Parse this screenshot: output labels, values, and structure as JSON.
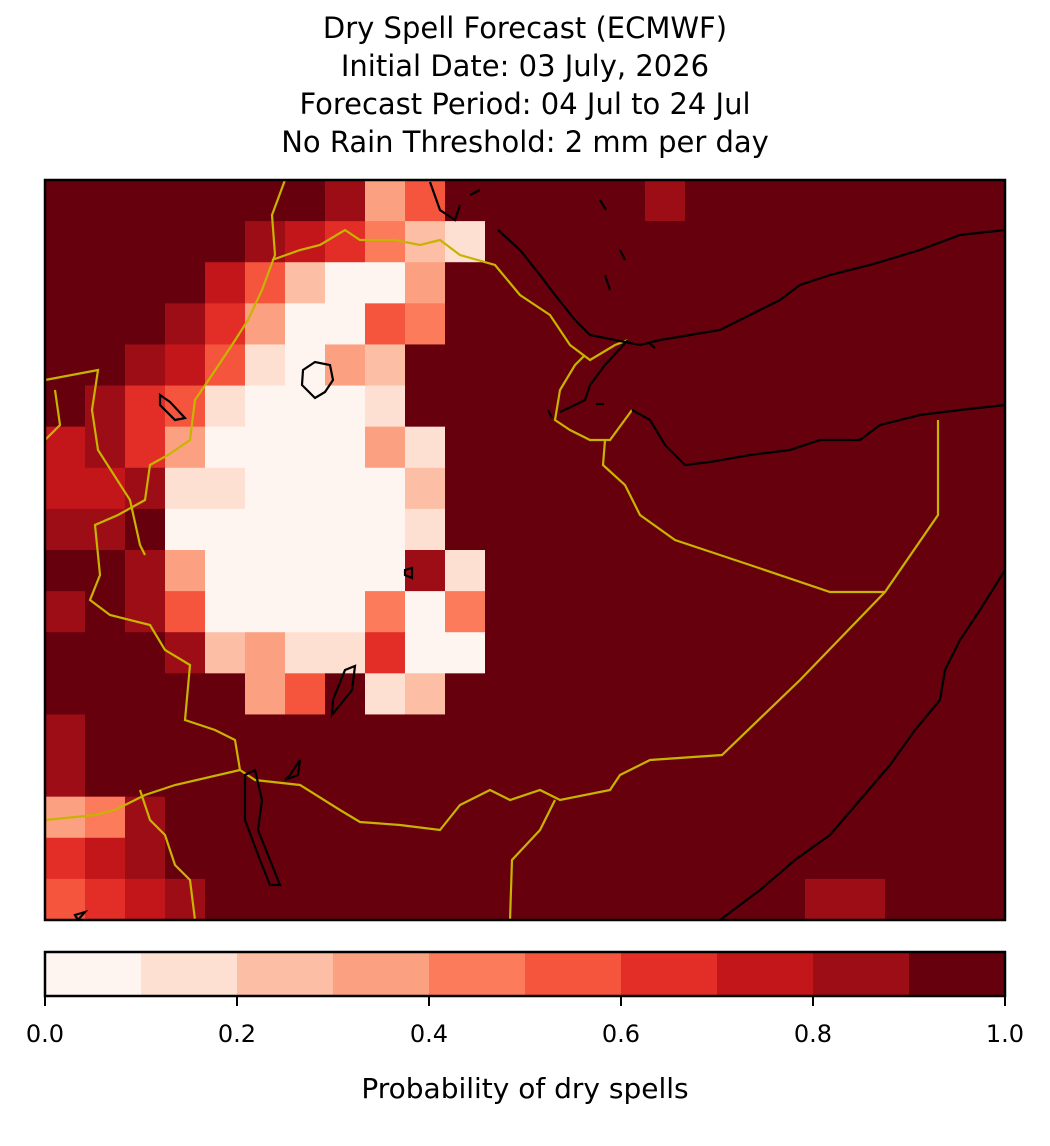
{
  "chart_data": {
    "type": "heatmap",
    "title": [
      "Dry Spell Forecast (ECMWF)",
      "Initial Date: 03 July, 2026",
      "Forecast Period: 04 Jul to 24 Jul",
      "No Rain Threshold: 2 mm per day"
    ],
    "values": [
      [
        0.95,
        0.95,
        0.95,
        0.95,
        0.95,
        0.95,
        0.95,
        0.85,
        0.35,
        0.55,
        0.95,
        0.95,
        0.95,
        0.95,
        0.95,
        0.85,
        0.95,
        0.95,
        0.95,
        0.95,
        0.95,
        0.95,
        0.95,
        0.95
      ],
      [
        0.95,
        0.95,
        0.95,
        0.95,
        0.95,
        0.85,
        0.75,
        0.65,
        0.45,
        0.2,
        0.15,
        0.95,
        0.95,
        0.95,
        0.95,
        0.95,
        0.95,
        0.95,
        0.95,
        0.95,
        0.95,
        0.95,
        0.95,
        0.95
      ],
      [
        0.95,
        0.95,
        0.95,
        0.95,
        0.75,
        0.55,
        0.2,
        0.05,
        0.05,
        0.3,
        0.95,
        0.95,
        0.95,
        0.95,
        0.95,
        0.95,
        0.95,
        0.95,
        0.95,
        0.95,
        0.95,
        0.95,
        0.95,
        0.95
      ],
      [
        0.95,
        0.95,
        0.95,
        0.85,
        0.65,
        0.35,
        0.05,
        0.05,
        0.5,
        0.4,
        0.95,
        0.95,
        0.95,
        0.95,
        0.95,
        0.95,
        0.95,
        0.95,
        0.95,
        0.95,
        0.95,
        0.95,
        0.95,
        0.95
      ],
      [
        0.95,
        0.95,
        0.85,
        0.75,
        0.55,
        0.15,
        0.05,
        0.3,
        0.2,
        0.9,
        0.95,
        0.95,
        0.95,
        0.95,
        0.95,
        0.95,
        0.95,
        0.95,
        0.95,
        0.95,
        0.95,
        0.95,
        0.95,
        0.95
      ],
      [
        0.9,
        0.8,
        0.65,
        0.55,
        0.15,
        0.05,
        0.05,
        0.05,
        0.15,
        0.95,
        0.95,
        0.95,
        0.95,
        0.95,
        0.95,
        0.95,
        0.95,
        0.95,
        0.95,
        0.95,
        0.95,
        0.95,
        0.95,
        0.95
      ],
      [
        0.75,
        0.8,
        0.65,
        0.3,
        0.05,
        0.05,
        0.05,
        0.05,
        0.3,
        0.1,
        0.95,
        0.95,
        0.95,
        0.95,
        0.95,
        0.95,
        0.95,
        0.95,
        0.95,
        0.95,
        0.95,
        0.95,
        0.95,
        0.95
      ],
      [
        0.75,
        0.7,
        0.85,
        0.1,
        0.1,
        0.05,
        0.05,
        0.05,
        0.05,
        0.2,
        0.95,
        0.95,
        0.95,
        0.95,
        0.95,
        0.95,
        0.95,
        0.95,
        0.95,
        0.95,
        0.95,
        0.95,
        0.95,
        0.95
      ],
      [
        0.85,
        0.85,
        0.9,
        0.05,
        0.05,
        0.05,
        0.05,
        0.05,
        0.05,
        0.1,
        0.95,
        0.95,
        0.95,
        0.95,
        0.95,
        0.95,
        0.95,
        0.95,
        0.95,
        0.95,
        0.95,
        0.95,
        0.95,
        0.95
      ],
      [
        0.9,
        0.95,
        0.8,
        0.35,
        0.05,
        0.05,
        0.05,
        0.05,
        0.05,
        0.85,
        0.1,
        0.95,
        0.95,
        0.95,
        0.95,
        0.95,
        0.95,
        0.95,
        0.95,
        0.95,
        0.95,
        0.95,
        0.95,
        0.95
      ],
      [
        0.85,
        0.9,
        0.85,
        0.55,
        0.05,
        0.05,
        0.05,
        0.05,
        0.4,
        0.05,
        0.45,
        0.95,
        0.95,
        0.95,
        0.95,
        0.95,
        0.95,
        0.95,
        0.95,
        0.95,
        0.95,
        0.95,
        0.95,
        0.95
      ],
      [
        0.9,
        0.95,
        0.95,
        0.85,
        0.2,
        0.35,
        0.15,
        0.15,
        0.6,
        0.05,
        0.05,
        0.95,
        0.95,
        0.95,
        0.95,
        0.95,
        0.95,
        0.95,
        0.95,
        0.95,
        0.95,
        0.95,
        0.95,
        0.95
      ],
      [
        0.9,
        0.95,
        0.95,
        0.95,
        0.95,
        0.3,
        0.55,
        0.9,
        0.15,
        0.25,
        0.95,
        0.95,
        0.95,
        0.95,
        0.95,
        0.95,
        0.95,
        0.95,
        0.95,
        0.95,
        0.95,
        0.95,
        0.95,
        0.95
      ],
      [
        0.85,
        0.95,
        0.95,
        0.95,
        0.95,
        0.95,
        0.95,
        0.95,
        0.95,
        0.95,
        0.95,
        0.95,
        0.95,
        0.95,
        0.95,
        0.95,
        0.95,
        0.95,
        0.95,
        0.95,
        0.95,
        0.95,
        0.95,
        0.95
      ],
      [
        0.8,
        0.9,
        0.95,
        0.95,
        0.95,
        0.95,
        0.95,
        0.95,
        0.95,
        0.95,
        0.95,
        0.95,
        0.95,
        0.95,
        0.95,
        0.95,
        0.95,
        0.95,
        0.95,
        0.95,
        0.95,
        0.95,
        0.95,
        0.95
      ],
      [
        0.35,
        0.45,
        0.85,
        0.95,
        0.95,
        0.95,
        0.95,
        0.95,
        0.95,
        0.95,
        0.95,
        0.95,
        0.95,
        0.95,
        0.95,
        0.95,
        0.95,
        0.95,
        0.95,
        0.95,
        0.95,
        0.95,
        0.95,
        0.95
      ],
      [
        0.6,
        0.75,
        0.85,
        0.95,
        0.95,
        0.95,
        0.95,
        0.95,
        0.95,
        0.95,
        0.95,
        0.95,
        0.95,
        0.95,
        0.95,
        0.95,
        0.95,
        0.95,
        0.95,
        0.95,
        0.95,
        0.95,
        0.95,
        0.95
      ],
      [
        0.55,
        0.6,
        0.75,
        0.85,
        0.95,
        0.95,
        0.95,
        0.95,
        0.95,
        0.95,
        0.95,
        0.95,
        0.95,
        0.95,
        0.95,
        0.95,
        0.95,
        0.95,
        0.95,
        0.85,
        0.85,
        0.95,
        0.95,
        0.95
      ]
    ],
    "colorbar": {
      "label": "Probability of dry spells",
      "levels": [
        0,
        0.1,
        0.2,
        0.3,
        0.4,
        0.5,
        0.6,
        0.7,
        0.8,
        0.9,
        1
      ],
      "colors": [
        "#fff5f0",
        "#fee0d2",
        "#fcbea5",
        "#fca082",
        "#fb7b5b",
        "#f5553d",
        "#e22e27",
        "#c3161b",
        "#9c0d15",
        "#67000d"
      ],
      "ticks": [
        {
          "value": 0,
          "label": "0.0"
        },
        0.2,
        0.4,
        0.6,
        0.8,
        {
          "value": 1,
          "label": "1.0"
        }
      ]
    }
  }
}
